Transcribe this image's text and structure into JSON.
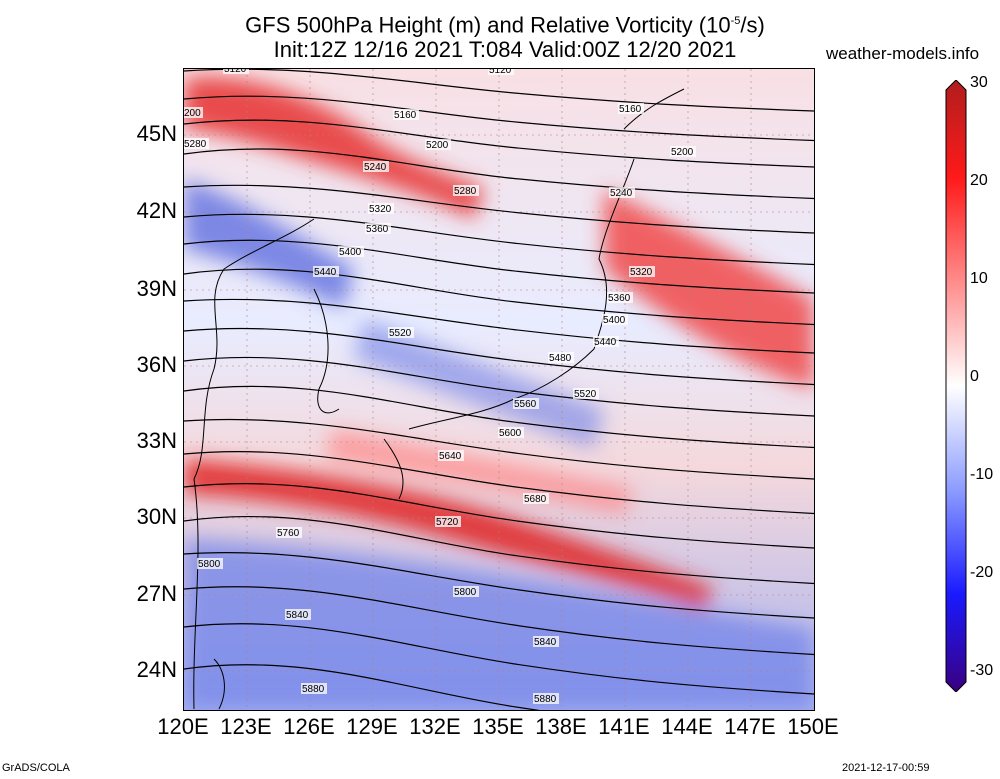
{
  "title_lines": [
    "GFS 500hPa Height (m) and Relative Vorticity (10",
    "-5",
    "/s)"
  ],
  "subtitle": "Init:12Z 12/16 2021 T:084 Valid:00Z 12/20 2021",
  "brand": "weather-models.info",
  "footer_left": "GrADS/COLA",
  "footer_right": "2021-12-17-00:59",
  "lat_labels": [
    "45N",
    "42N",
    "39N",
    "36N",
    "33N",
    "30N",
    "27N",
    "24N"
  ],
  "lon_labels": [
    "120E",
    "123E",
    "126E",
    "129E",
    "132E",
    "135E",
    "138E",
    "141E",
    "144E",
    "147E",
    "150E"
  ],
  "colorbar": {
    "labels": [
      "30",
      "20",
      "10",
      "0",
      "-10",
      "-20",
      "-30"
    ],
    "colors": [
      "#b01d1d",
      "#ff1a1a",
      "#ff8c8c",
      "#ffffff",
      "#8c9cff",
      "#1a1aff",
      "#3a0080"
    ]
  },
  "contour_labels": [
    "5120",
    "5160",
    "5200",
    "5240",
    "5280",
    "5320",
    "5360",
    "5400",
    "5440",
    "5480",
    "5520",
    "5560",
    "5600",
    "5640",
    "5680",
    "5720",
    "5760",
    "5800",
    "5840",
    "5880"
  ],
  "map_labels": [
    {
      "text": "5120"
    },
    {
      "text": "5120"
    },
    {
      "text": "200"
    },
    {
      "text": "5160"
    },
    {
      "text": "5160"
    },
    {
      "text": "5280"
    },
    {
      "text": "5200"
    },
    {
      "text": "5200"
    },
    {
      "text": "5240"
    },
    {
      "text": "5240"
    },
    {
      "text": "5280"
    },
    {
      "text": "5320"
    },
    {
      "text": "5360"
    },
    {
      "text": "5400"
    },
    {
      "text": "5440"
    },
    {
      "text": "5320"
    },
    {
      "text": "5360"
    },
    {
      "text": "5400"
    },
    {
      "text": "5440"
    },
    {
      "text": "5520"
    },
    {
      "text": "5480"
    },
    {
      "text": "5520"
    },
    {
      "text": "5560"
    },
    {
      "text": "5600"
    },
    {
      "text": "5640"
    },
    {
      "text": "5680"
    },
    {
      "text": "5720"
    },
    {
      "text": "5760"
    },
    {
      "text": "5800"
    },
    {
      "text": "5800"
    },
    {
      "text": "5840"
    },
    {
      "text": "5840"
    },
    {
      "text": "5880"
    },
    {
      "text": "5880"
    }
  ]
}
